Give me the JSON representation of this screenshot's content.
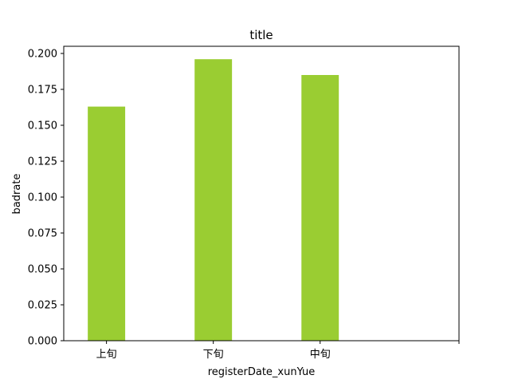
{
  "chart_data": {
    "type": "bar",
    "title": "title",
    "xlabel": "registerDate_xunYue",
    "ylabel": "badrate",
    "categories": [
      "上旬",
      "下旬",
      "中旬"
    ],
    "values": [
      0.163,
      0.196,
      0.185
    ],
    "ylim": [
      0,
      0.205
    ],
    "yticks": [
      0.0,
      0.025,
      0.05,
      0.075,
      0.1,
      0.125,
      0.15,
      0.175,
      0.2
    ],
    "ytick_labels": [
      "0.000",
      "0.025",
      "0.050",
      "0.075",
      "0.100",
      "0.125",
      "0.150",
      "0.175",
      "0.200"
    ],
    "bar_color": "#9acd32",
    "grid": false,
    "legend": "none"
  }
}
